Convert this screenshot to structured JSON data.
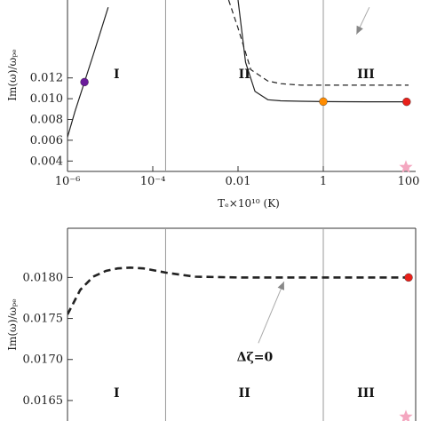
{
  "chart_data": [
    {
      "type": "line",
      "xscale": "log",
      "xlim": [
        1e-06,
        100
      ],
      "ylim": [
        0.003,
        0.0195
      ],
      "x_ticks": [
        1e-06,
        0.0001,
        0.01,
        1,
        100
      ],
      "x_tick_labels": [
        "10⁻⁶",
        "10⁻⁴",
        "0.01",
        "1",
        "100"
      ],
      "y_ticks": [
        0.004,
        0.006,
        0.008,
        0.01,
        0.012
      ],
      "y_tick_labels": [
        "0.004",
        "0.006",
        "0.008",
        "0.010",
        "0.012"
      ],
      "xlabel": "Tₑ×10¹⁰ (K)",
      "ylabel": "Im(ω)/ωₚₑ",
      "regions": [
        "I",
        "II",
        "III"
      ],
      "region_boundaries": [
        0.0002,
        1
      ],
      "series": [
        {
          "style": "solid",
          "x": [
            1e-06,
            1.5e-06,
            2.5e-06,
            4e-06,
            6e-06,
            9e-06
          ],
          "y": [
            0.0063,
            0.0088,
            0.0116,
            0.0142,
            0.0165,
            0.0188
          ]
        },
        {
          "style": "solid",
          "x": [
            0.01,
            0.015,
            0.025,
            0.05,
            0.1,
            0.3,
            1,
            10,
            100
          ],
          "y": [
            0.0195,
            0.0135,
            0.0107,
            0.0099,
            0.0098,
            0.00975,
            0.00972,
            0.0097,
            0.0097
          ]
        },
        {
          "style": "dashed",
          "x": [
            0.006,
            0.01,
            0.02,
            0.05,
            0.1,
            0.3,
            1,
            10,
            100
          ],
          "y": [
            0.0195,
            0.0168,
            0.0128,
            0.0117,
            0.01145,
            0.0113,
            0.0113,
            0.0113,
            0.0113
          ]
        }
      ],
      "markers": [
        {
          "x": 2.5e-06,
          "y": 0.0116,
          "color": "#6a1b9a"
        },
        {
          "x": 1,
          "y": 0.00972,
          "color": "#ff8c00"
        },
        {
          "x": 90,
          "y": 0.0097,
          "color": "#e8201a"
        }
      ],
      "star": {
        "x": 100,
        "y": 0.0034,
        "color": "#f4a7c0"
      },
      "arrow": {
        "from": [
          12,
          0.0188
        ],
        "to": [
          6,
          0.0162
        ]
      }
    },
    {
      "type": "line",
      "xscale": "log",
      "xlim": [
        1e-06,
        100
      ],
      "ylim": [
        0.01625,
        0.0186
      ],
      "y_ticks": [
        0.0165,
        0.017,
        0.0175,
        0.018
      ],
      "y_tick_labels": [
        "0.0165",
        "0.0170",
        "0.0175",
        "0.0180"
      ],
      "ylabel": "Im(ω)/ωₚₑ",
      "regions": [
        "I",
        "II",
        "III"
      ],
      "region_boundaries": [
        0.0002,
        1
      ],
      "series": [
        {
          "style": "dashed",
          "x": [
            1e-06,
            2e-06,
            4e-06,
            8e-06,
            1.5e-05,
            3e-05,
            6e-05,
            0.0001,
            0.0002,
            0.0005,
            0.001,
            0.01,
            0.1,
            1,
            10,
            100
          ],
          "y": [
            0.01755,
            0.01785,
            0.01801,
            0.01808,
            0.01811,
            0.01812,
            0.01811,
            0.01809,
            0.01806,
            0.01803,
            0.01801,
            0.018,
            0.018,
            0.018,
            0.018,
            0.018
          ]
        }
      ],
      "markers": [
        {
          "x": 100,
          "y": 0.018,
          "color": "#e8201a"
        }
      ],
      "star": {
        "x": 100,
        "y": 0.0163,
        "color": "#f4a7c0"
      },
      "annotation": "Δζ=0",
      "arrow": {
        "from": [
          0.03,
          0.0172
        ],
        "to": [
          0.12,
          0.01795
        ]
      }
    }
  ]
}
